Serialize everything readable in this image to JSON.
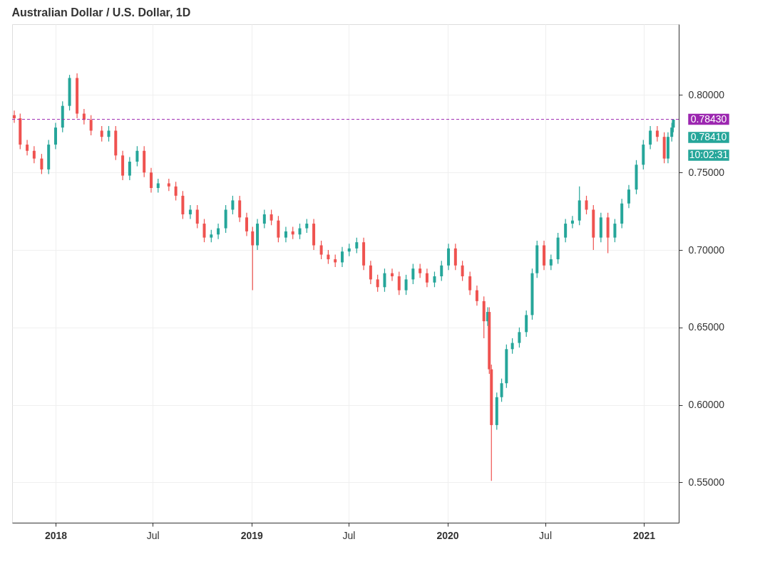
{
  "chart_data": {
    "type": "candlestick",
    "title": "Australian Dollar / U.S. Dollar, 1D",
    "x": [
      "2017-10-16",
      "2017-10-27",
      "2017-11-09",
      "2017-11-22",
      "2017-12-06",
      "2017-12-19",
      "2018-01-01",
      "2018-01-14",
      "2018-01-27",
      "2018-02-10",
      "2018-02-23",
      "2018-03-08",
      "2018-03-28",
      "2018-04-10",
      "2018-04-23",
      "2018-05-06",
      "2018-05-19",
      "2018-06-02",
      "2018-06-15",
      "2018-06-28",
      "2018-07-11",
      "2018-07-31",
      "2018-08-13",
      "2018-08-26",
      "2018-09-09",
      "2018-09-22",
      "2018-10-05",
      "2018-10-18",
      "2018-10-31",
      "2018-11-14",
      "2018-11-27",
      "2018-12-10",
      "2018-12-23",
      "2019-01-03",
      "2019-01-12",
      "2019-01-25",
      "2019-02-07",
      "2019-02-20",
      "2019-03-06",
      "2019-03-19",
      "2019-04-01",
      "2019-04-14",
      "2019-04-27",
      "2019-05-11",
      "2019-05-24",
      "2019-06-06",
      "2019-06-19",
      "2019-07-02",
      "2019-07-16",
      "2019-07-29",
      "2019-08-11",
      "2019-08-24",
      "2019-09-06",
      "2019-09-20",
      "2019-10-03",
      "2019-10-16",
      "2019-10-29",
      "2019-11-11",
      "2019-11-24",
      "2019-12-08",
      "2019-12-21",
      "2020-01-03",
      "2020-01-16",
      "2020-01-29",
      "2020-02-12",
      "2020-02-25",
      "2020-03-09",
      "2020-03-16",
      "2020-03-19",
      "2020-03-23",
      "2020-04-02",
      "2020-04-11",
      "2020-04-20",
      "2020-05-01",
      "2020-05-14",
      "2020-05-27",
      "2020-06-07",
      "2020-06-16",
      "2020-06-29",
      "2020-07-12",
      "2020-07-25",
      "2020-08-08",
      "2020-08-21",
      "2020-09-03",
      "2020-09-16",
      "2020-09-29",
      "2020-10-13",
      "2020-10-26",
      "2020-11-08",
      "2020-11-21",
      "2020-12-04",
      "2020-12-18",
      "2020-12-31",
      "2021-01-13",
      "2021-01-26",
      "2021-02-08",
      "2021-02-15",
      "2021-02-22",
      "2021-02-25"
    ],
    "ohlc": [
      [
        0.787,
        0.79,
        0.782,
        0.785
      ],
      [
        0.785,
        0.788,
        0.765,
        0.768
      ],
      [
        0.768,
        0.771,
        0.761,
        0.764
      ],
      [
        0.764,
        0.767,
        0.756,
        0.759
      ],
      [
        0.759,
        0.762,
        0.749,
        0.752
      ],
      [
        0.752,
        0.771,
        0.749,
        0.768
      ],
      [
        0.768,
        0.782,
        0.765,
        0.779
      ],
      [
        0.779,
        0.796,
        0.776,
        0.793
      ],
      [
        0.793,
        0.813,
        0.79,
        0.811
      ],
      [
        0.811,
        0.814,
        0.785,
        0.788
      ],
      [
        0.788,
        0.791,
        0.781,
        0.784
      ],
      [
        0.784,
        0.787,
        0.774,
        0.777
      ],
      [
        0.777,
        0.78,
        0.77,
        0.773
      ],
      [
        0.773,
        0.78,
        0.77,
        0.777
      ],
      [
        0.777,
        0.78,
        0.758,
        0.761
      ],
      [
        0.761,
        0.764,
        0.745,
        0.748
      ],
      [
        0.748,
        0.76,
        0.745,
        0.757
      ],
      [
        0.757,
        0.767,
        0.754,
        0.764
      ],
      [
        0.764,
        0.767,
        0.747,
        0.75
      ],
      [
        0.75,
        0.753,
        0.737,
        0.74
      ],
      [
        0.74,
        0.746,
        0.737,
        0.743
      ],
      [
        0.743,
        0.746,
        0.738,
        0.741
      ],
      [
        0.741,
        0.744,
        0.732,
        0.735
      ],
      [
        0.735,
        0.738,
        0.72,
        0.723
      ],
      [
        0.723,
        0.729,
        0.72,
        0.726
      ],
      [
        0.726,
        0.729,
        0.714,
        0.717
      ],
      [
        0.717,
        0.72,
        0.705,
        0.708
      ],
      [
        0.708,
        0.713,
        0.705,
        0.71
      ],
      [
        0.71,
        0.717,
        0.707,
        0.714
      ],
      [
        0.714,
        0.729,
        0.711,
        0.726
      ],
      [
        0.726,
        0.735,
        0.723,
        0.732
      ],
      [
        0.732,
        0.735,
        0.718,
        0.721
      ],
      [
        0.721,
        0.724,
        0.709,
        0.712
      ],
      [
        0.712,
        0.715,
        0.674,
        0.703
      ],
      [
        0.703,
        0.72,
        0.7,
        0.717
      ],
      [
        0.717,
        0.726,
        0.714,
        0.723
      ],
      [
        0.723,
        0.726,
        0.716,
        0.719
      ],
      [
        0.719,
        0.722,
        0.705,
        0.708
      ],
      [
        0.708,
        0.715,
        0.705,
        0.712
      ],
      [
        0.712,
        0.715,
        0.707,
        0.71
      ],
      [
        0.71,
        0.717,
        0.707,
        0.714
      ],
      [
        0.714,
        0.72,
        0.711,
        0.717
      ],
      [
        0.717,
        0.72,
        0.7,
        0.703
      ],
      [
        0.703,
        0.706,
        0.694,
        0.697
      ],
      [
        0.697,
        0.7,
        0.691,
        0.694
      ],
      [
        0.694,
        0.697,
        0.689,
        0.692
      ],
      [
        0.692,
        0.702,
        0.689,
        0.699
      ],
      [
        0.699,
        0.704,
        0.696,
        0.701
      ],
      [
        0.701,
        0.708,
        0.698,
        0.705
      ],
      [
        0.705,
        0.708,
        0.687,
        0.69
      ],
      [
        0.69,
        0.693,
        0.678,
        0.681
      ],
      [
        0.681,
        0.684,
        0.673,
        0.676
      ],
      [
        0.676,
        0.688,
        0.673,
        0.685
      ],
      [
        0.685,
        0.688,
        0.68,
        0.683
      ],
      [
        0.683,
        0.686,
        0.671,
        0.674
      ],
      [
        0.674,
        0.684,
        0.671,
        0.681
      ],
      [
        0.681,
        0.691,
        0.678,
        0.688
      ],
      [
        0.688,
        0.691,
        0.682,
        0.685
      ],
      [
        0.685,
        0.688,
        0.676,
        0.679
      ],
      [
        0.679,
        0.686,
        0.676,
        0.683
      ],
      [
        0.683,
        0.693,
        0.68,
        0.69
      ],
      [
        0.69,
        0.704,
        0.687,
        0.701
      ],
      [
        0.701,
        0.704,
        0.687,
        0.69
      ],
      [
        0.69,
        0.693,
        0.68,
        0.683
      ],
      [
        0.683,
        0.686,
        0.671,
        0.674
      ],
      [
        0.674,
        0.677,
        0.664,
        0.667
      ],
      [
        0.667,
        0.67,
        0.643,
        0.654
      ],
      [
        0.654,
        0.663,
        0.651,
        0.66
      ],
      [
        0.66,
        0.663,
        0.62,
        0.623
      ],
      [
        0.623,
        0.626,
        0.551,
        0.587
      ],
      [
        0.587,
        0.608,
        0.584,
        0.605
      ],
      [
        0.605,
        0.617,
        0.602,
        0.614
      ],
      [
        0.614,
        0.639,
        0.611,
        0.636
      ],
      [
        0.636,
        0.643,
        0.633,
        0.64
      ],
      [
        0.64,
        0.65,
        0.637,
        0.647
      ],
      [
        0.647,
        0.661,
        0.644,
        0.658
      ],
      [
        0.658,
        0.688,
        0.655,
        0.685
      ],
      [
        0.685,
        0.706,
        0.682,
        0.703
      ],
      [
        0.703,
        0.706,
        0.687,
        0.69
      ],
      [
        0.69,
        0.697,
        0.687,
        0.694
      ],
      [
        0.694,
        0.711,
        0.691,
        0.708
      ],
      [
        0.708,
        0.72,
        0.705,
        0.717
      ],
      [
        0.717,
        0.722,
        0.714,
        0.719
      ],
      [
        0.719,
        0.741,
        0.716,
        0.732
      ],
      [
        0.732,
        0.735,
        0.723,
        0.726
      ],
      [
        0.726,
        0.729,
        0.7,
        0.708
      ],
      [
        0.708,
        0.724,
        0.705,
        0.721
      ],
      [
        0.721,
        0.724,
        0.698,
        0.708
      ],
      [
        0.708,
        0.72,
        0.705,
        0.717
      ],
      [
        0.717,
        0.733,
        0.714,
        0.73
      ],
      [
        0.73,
        0.742,
        0.727,
        0.739
      ],
      [
        0.739,
        0.758,
        0.736,
        0.755
      ],
      [
        0.755,
        0.771,
        0.752,
        0.768
      ],
      [
        0.768,
        0.78,
        0.765,
        0.777
      ],
      [
        0.777,
        0.78,
        0.77,
        0.773
      ],
      [
        0.773,
        0.776,
        0.756,
        0.759
      ],
      [
        0.759,
        0.776,
        0.756,
        0.773
      ],
      [
        0.773,
        0.782,
        0.77,
        0.779
      ],
      [
        0.779,
        0.7845,
        0.776,
        0.7841
      ]
    ],
    "colors": [
      "#ef5350",
      "#ef5350",
      "#ef5350",
      "#ef5350",
      "#ef5350",
      "#26a69a",
      "#26a69a",
      "#26a69a",
      "#26a69a",
      "#ef5350",
      "#ef5350",
      "#ef5350",
      "#ef5350",
      "#26a69a",
      "#ef5350",
      "#ef5350",
      "#26a69a",
      "#26a69a",
      "#ef5350",
      "#ef5350",
      "#26a69a",
      "#ef5350",
      "#ef5350",
      "#ef5350",
      "#26a69a",
      "#ef5350",
      "#ef5350",
      "#26a69a",
      "#26a69a",
      "#26a69a",
      "#26a69a",
      "#ef5350",
      "#ef5350",
      "#ef5350",
      "#26a69a",
      "#26a69a",
      "#ef5350",
      "#ef5350",
      "#26a69a",
      "#ef5350",
      "#26a69a",
      "#26a69a",
      "#ef5350",
      "#ef5350",
      "#ef5350",
      "#ef5350",
      "#26a69a",
      "#26a69a",
      "#26a69a",
      "#ef5350",
      "#ef5350",
      "#ef5350",
      "#26a69a",
      "#ef5350",
      "#ef5350",
      "#26a69a",
      "#26a69a",
      "#ef5350",
      "#ef5350",
      "#26a69a",
      "#26a69a",
      "#26a69a",
      "#ef5350",
      "#ef5350",
      "#ef5350",
      "#ef5350",
      "#ef5350",
      "#26a69a",
      "#ef5350",
      "#ef5350",
      "#26a69a",
      "#26a69a",
      "#26a69a",
      "#26a69a",
      "#26a69a",
      "#26a69a",
      "#26a69a",
      "#26a69a",
      "#ef5350",
      "#26a69a",
      "#26a69a",
      "#26a69a",
      "#26a69a",
      "#26a69a",
      "#ef5350",
      "#ef5350",
      "#26a69a",
      "#ef5350",
      "#26a69a",
      "#26a69a",
      "#26a69a",
      "#26a69a",
      "#26a69a",
      "#26a69a",
      "#ef5350",
      "#ef5350",
      "#26a69a",
      "#26a69a",
      "#26a69a"
    ],
    "xlim": [
      "2017-10-12",
      "2021-03-07"
    ],
    "xticks": [
      {
        "value": "2018-01-01",
        "label": "2018"
      },
      {
        "value": "2018-07-01",
        "label": "Jul"
      },
      {
        "value": "2019-01-01",
        "label": "2019"
      },
      {
        "value": "2019-07-01",
        "label": "Jul"
      },
      {
        "value": "2020-01-01",
        "label": "2020"
      },
      {
        "value": "2020-07-01",
        "label": "Jul"
      },
      {
        "value": "2021-01-01",
        "label": "2021"
      }
    ],
    "ylim": [
      0.524,
      0.8457
    ],
    "yticks": [
      {
        "value": 0.55,
        "label": "0.55000"
      },
      {
        "value": 0.6,
        "label": "0.60000"
      },
      {
        "value": 0.65,
        "label": "0.65000"
      },
      {
        "value": 0.7,
        "label": "0.70000"
      },
      {
        "value": 0.75,
        "label": "0.75000"
      },
      {
        "value": 0.8,
        "label": "0.80000"
      }
    ],
    "grid": true,
    "ref_lines": [
      {
        "axis": "y",
        "value": 0.7843,
        "label": "0.78430",
        "color": "#9c27b0",
        "line_style": "dashed"
      }
    ],
    "annotations": [
      "0.78410",
      "10:02:31"
    ]
  }
}
